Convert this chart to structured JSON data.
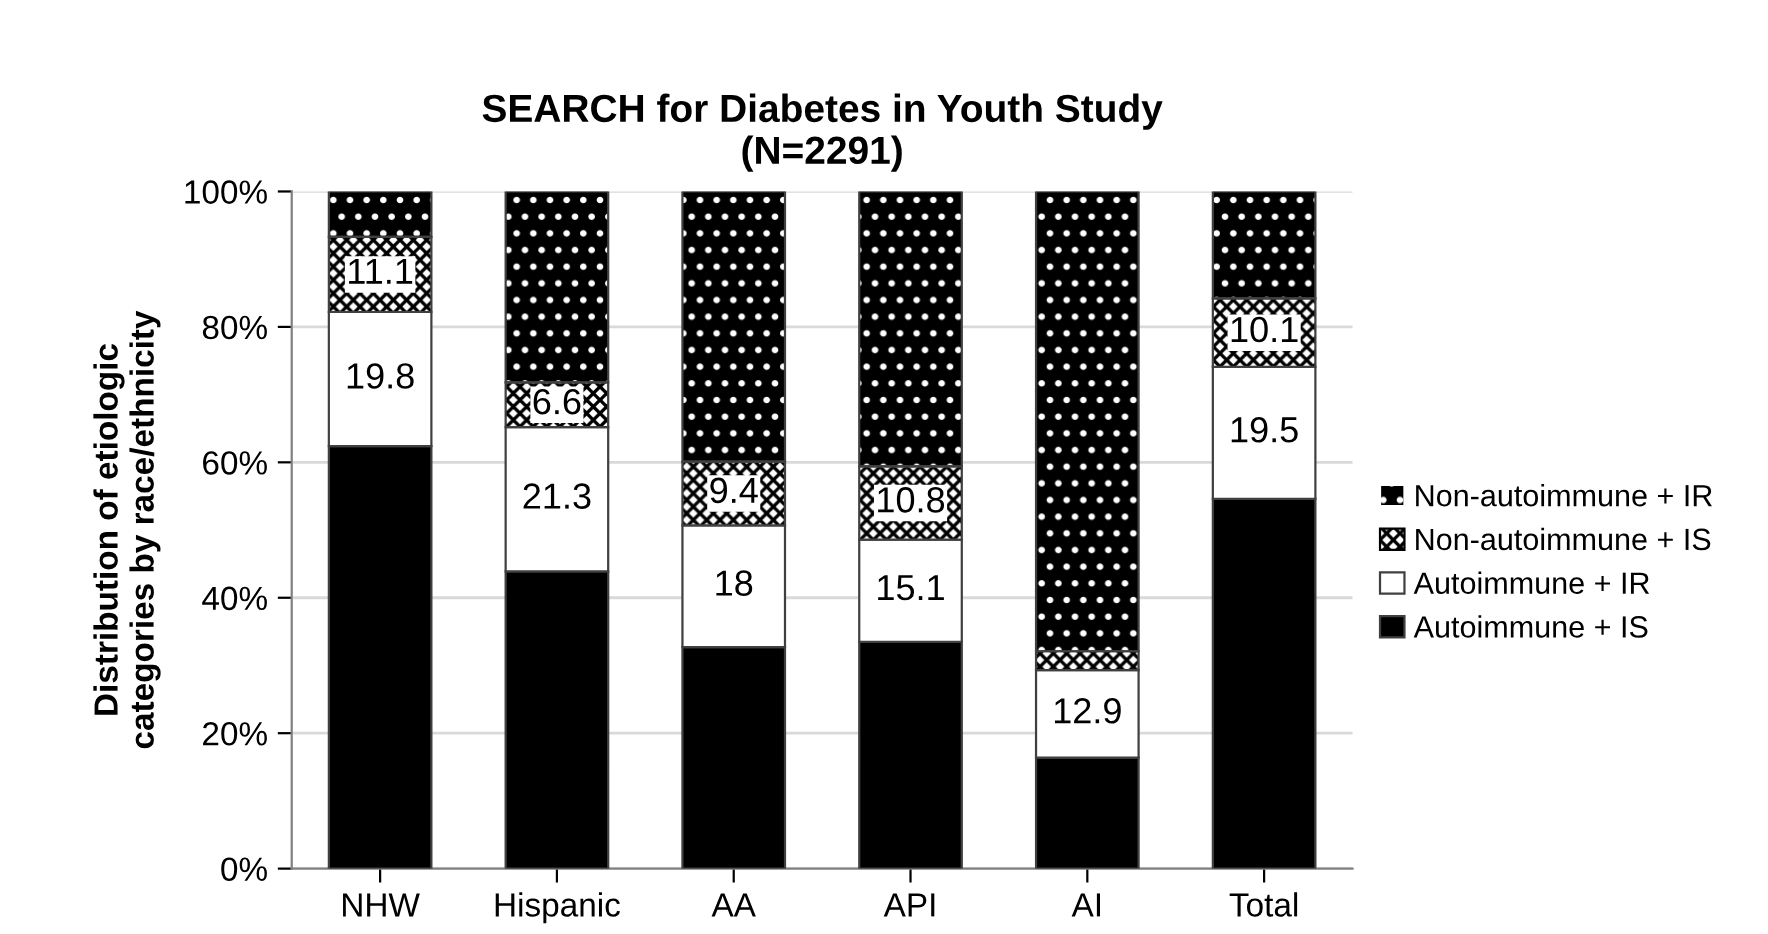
{
  "chart_data": {
    "type": "bar",
    "stacked": true,
    "title": "SEARCH for Diabetes in Youth Study\n(N=2291)",
    "ylabel": "Distribution of etiologic\ncategories by race/ethnicity",
    "categories": [
      "NHW",
      "Hispanic",
      "AA",
      "API",
      "AI",
      "Total"
    ],
    "series": [
      {
        "name": "Autoimmune + IS",
        "color": "#000000",
        "values": [
          62.4,
          43.9,
          32.7,
          33.5,
          16.4,
          54.6
        ],
        "value_labels": [
          null,
          null,
          null,
          null,
          null,
          null
        ]
      },
      {
        "name": "Autoimmune + IR",
        "color": "#ffffff",
        "values": [
          19.8,
          21.3,
          18,
          15.1,
          12.9,
          19.5
        ],
        "value_labels": [
          "19.8",
          "21.3",
          "18",
          "15.1",
          "12.9",
          "19.5"
        ]
      },
      {
        "name": "Non-autoimmune + IS",
        "color": "#ffffff",
        "values": [
          11.1,
          6.6,
          9.4,
          10.8,
          2.8,
          10.1
        ],
        "value_labels": [
          "11.1",
          "6.6",
          "9.4",
          "10.8",
          null,
          "10.1"
        ]
      },
      {
        "name": "Non-autoimmune + IR",
        "color": "#000000",
        "values": [
          6.7,
          28.2,
          39.9,
          40.6,
          67.9,
          15.8
        ],
        "value_labels": [
          null,
          null,
          null,
          null,
          null,
          null
        ]
      }
    ],
    "ylim": [
      0,
      100
    ],
    "yticks": [
      {
        "value": 0,
        "label": "0%"
      },
      {
        "value": 20,
        "label": "20%"
      },
      {
        "value": 40,
        "label": "40%"
      },
      {
        "value": 60,
        "label": "60%"
      },
      {
        "value": 80,
        "label": "80%"
      },
      {
        "value": 100,
        "label": "100%"
      }
    ],
    "grid": "y",
    "legend": "right"
  }
}
